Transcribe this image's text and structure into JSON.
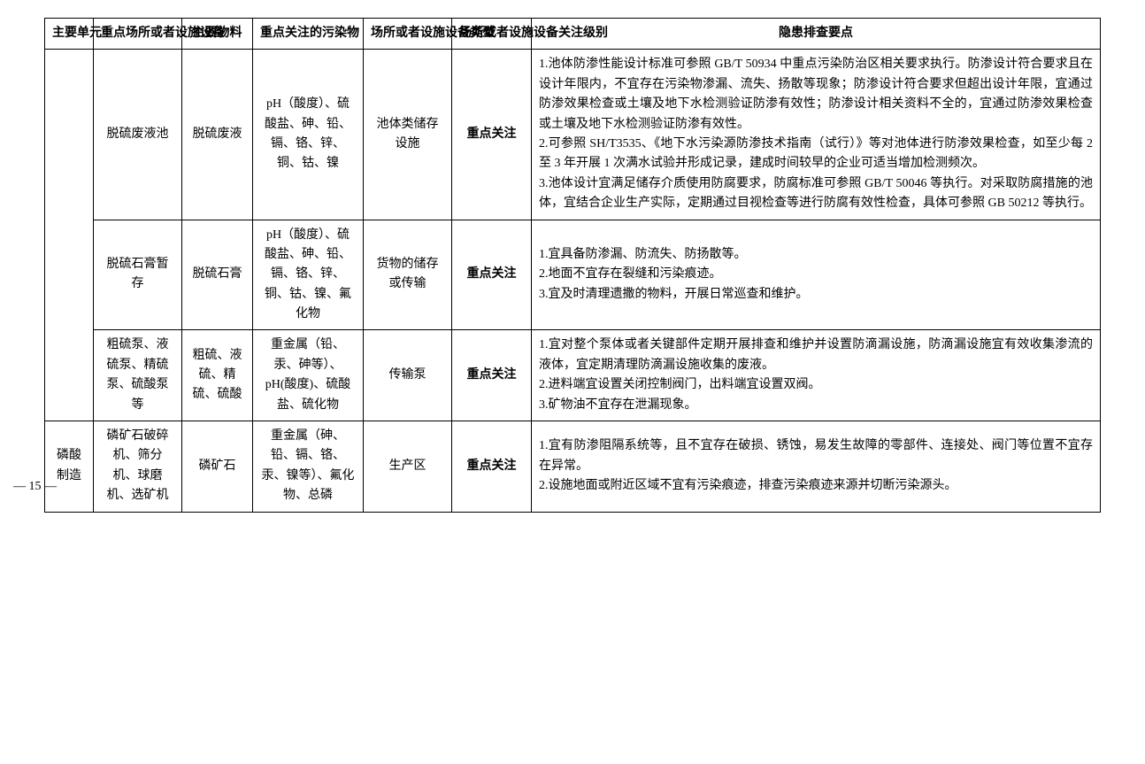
{
  "headers": {
    "h1": "主要单元",
    "h2": "重点场所或者设施设备",
    "h3": "主要物料",
    "h4": "重点关注的污染物",
    "h5": "场所或者设施设备类型",
    "h6": "场所或者设施设备关注级别",
    "h7": "隐患排查要点"
  },
  "rows": [
    {
      "c1": "",
      "c2": "脱硫废液池",
      "c3": "脱硫废液",
      "c4": "pH（酸度）、硫酸盐、砷、铅、镉、铬、锌、铜、钴、镍",
      "c5": "池体类储存设施",
      "c6": "重点关注",
      "c7": "1.池体防渗性能设计标准可参照 GB/T 50934 中重点污染防治区相关要求执行。防渗设计符合要求且在设计年限内，不宜存在污染物渗漏、流失、扬散等现象；防渗设计符合要求但超出设计年限，宜通过防渗效果检查或土壤及地下水检测验证防渗有效性；防渗设计相关资料不全的，宜通过防渗效果检查或土壤及地下水检测验证防渗有效性。\n2.可参照 SH/T3535、《地下水污染源防渗技术指南（试行）》等对池体进行防渗效果检查，如至少每 2 至 3 年开展 1 次满水试验并形成记录，建成时间较早的企业可适当增加检测频次。\n3.池体设计宜满足储存介质使用防腐要求，防腐标准可参照 GB/T 50046 等执行。对采取防腐措施的池体，宜结合企业生产实际，定期通过目视检查等进行防腐有效性检查，具体可参照 GB 50212 等执行。"
    },
    {
      "c1": "",
      "c2": "脱硫石膏暂存",
      "c3": "脱硫石膏",
      "c4": "pH（酸度）、硫酸盐、砷、铅、镉、铬、锌、铜、钴、镍、氟化物",
      "c5": "货物的储存或传输",
      "c6": "重点关注",
      "c7": "1.宜具备防渗漏、防流失、防扬散等。\n2.地面不宜存在裂缝和污染痕迹。\n3.宜及时清理遗撒的物料，开展日常巡查和维护。"
    },
    {
      "c1": "",
      "c2": "粗硫泵、液硫泵、精硫泵、硫酸泵等",
      "c3": "粗硫、液硫、精硫、硫酸",
      "c4": "重金属（铅、汞、砷等）、pH(酸度)、硫酸盐、硫化物",
      "c5": "传输泵",
      "c6": "重点关注",
      "c7": "1.宜对整个泵体或者关键部件定期开展排查和维护并设置防滴漏设施，防滴漏设施宜有效收集渗流的液体，宜定期清理防滴漏设施收集的废液。\n2.进料端宜设置关闭控制阀门，出料端宜设置双阀。\n3.矿物油不宜存在泄漏现象。"
    },
    {
      "c1": "磷酸制造",
      "c2": "磷矿石破碎机、筛分机、球磨机、选矿机",
      "c3": "磷矿石",
      "c4": "重金属（砷、铅、镉、铬、汞、镍等）、氟化物、总磷",
      "c5": "生产区",
      "c6": "重点关注",
      "c7": "1.宜有防渗阻隔系统等，且不宜存在破损、锈蚀，易发生故障的零部件、连接处、阀门等位置不宜存在异常。\n2.设施地面或附近区域不宜有污染痕迹，排查污染痕迹来源并切断污染源头。"
    }
  ],
  "pageNumber": "— 15 —"
}
